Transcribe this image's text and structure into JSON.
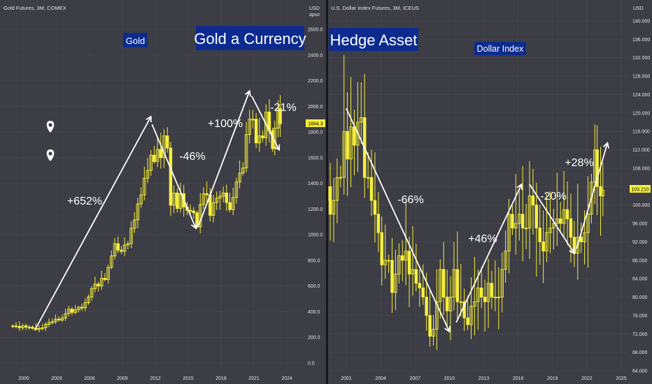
{
  "colors": {
    "background": "#3c3d45",
    "grid": "#4a4b53",
    "candle": "#f7ef3a",
    "arrow": "#ffffff",
    "text": "#e6e6e6",
    "label_box": "#0d2b8f",
    "price_tag": "#f7ef3a",
    "divider": "#17181c"
  },
  "chart_data": [
    {
      "type": "candlestick",
      "title": "Gold Futures, 3M, COMEX",
      "axis_currency": "USD",
      "axis_unit": "apoz",
      "yticks": [
        "0.0",
        "200.0",
        "400.0",
        "600.0",
        "800.0",
        "1000.0",
        "1200.0",
        "1400.0",
        "1600.0",
        "1800.0",
        "2000.0",
        "2200.0",
        "2400.0",
        "2600.0"
      ],
      "ylim": [
        -50,
        2700
      ],
      "xticks": [
        "2000",
        "2003",
        "2006",
        "2009",
        "2012",
        "2015",
        "2018",
        "2021",
        "2024"
      ],
      "last_price": "1864.3",
      "labels": {
        "series": "Gold",
        "theme": "Gold a Currency"
      },
      "moves": [
        "+652%",
        "-46%",
        "+100%",
        "-21%"
      ],
      "trend_arrows": [
        {
          "from": [
            2001.0,
            255
          ],
          "to": [
            2011.6,
            1920
          ]
        },
        {
          "from": [
            2011.7,
            1860
          ],
          "to": [
            2015.7,
            1050
          ]
        },
        {
          "from": [
            2015.9,
            1060
          ],
          "to": [
            2020.6,
            2120
          ]
        },
        {
          "from": [
            2020.8,
            2080
          ],
          "to": [
            2023.3,
            1660
          ]
        }
      ],
      "quarterly_close": [
        [
          1999.0,
          290
        ],
        [
          1999.3,
          285
        ],
        [
          1999.6,
          275
        ],
        [
          1999.9,
          290
        ],
        [
          2000.2,
          280
        ],
        [
          2000.5,
          280
        ],
        [
          2000.8,
          270
        ],
        [
          2001.1,
          262
        ],
        [
          2001.4,
          270
        ],
        [
          2001.7,
          275
        ],
        [
          2002.0,
          302
        ],
        [
          2002.3,
          315
        ],
        [
          2002.6,
          322
        ],
        [
          2002.9,
          342
        ],
        [
          2003.2,
          335
        ],
        [
          2003.5,
          350
        ],
        [
          2003.8,
          385
        ],
        [
          2004.1,
          420
        ],
        [
          2004.4,
          395
        ],
        [
          2004.7,
          415
        ],
        [
          2005.0,
          435
        ],
        [
          2005.3,
          430
        ],
        [
          2005.6,
          470
        ],
        [
          2005.9,
          515
        ],
        [
          2006.2,
          580
        ],
        [
          2006.5,
          615
        ],
        [
          2006.8,
          600
        ],
        [
          2007.1,
          660
        ],
        [
          2007.4,
          650
        ],
        [
          2007.7,
          745
        ],
        [
          2008.0,
          835
        ],
        [
          2008.3,
          930
        ],
        [
          2008.6,
          880
        ],
        [
          2008.9,
          870
        ],
        [
          2009.2,
          920
        ],
        [
          2009.5,
          930
        ],
        [
          2009.8,
          1050
        ],
        [
          2010.1,
          1115
        ],
        [
          2010.4,
          1240
        ],
        [
          2010.7,
          1310
        ],
        [
          2011.0,
          1440
        ],
        [
          2011.3,
          1500
        ],
        [
          2011.6,
          1620
        ],
        [
          2011.9,
          1570
        ],
        [
          2012.2,
          1665
        ],
        [
          2012.5,
          1600
        ],
        [
          2012.8,
          1770
        ],
        [
          2013.1,
          1675
        ],
        [
          2013.4,
          1230
        ],
        [
          2013.7,
          1325
        ],
        [
          2014.0,
          1205
        ],
        [
          2014.3,
          1320
        ],
        [
          2014.6,
          1215
        ],
        [
          2014.9,
          1190
        ],
        [
          2015.2,
          1185
        ],
        [
          2015.5,
          1170
        ],
        [
          2015.8,
          1060
        ],
        [
          2016.1,
          1235
        ],
        [
          2016.4,
          1320
        ],
        [
          2016.7,
          1310
        ],
        [
          2017.0,
          1150
        ],
        [
          2017.3,
          1250
        ],
        [
          2017.6,
          1285
        ],
        [
          2017.9,
          1300
        ],
        [
          2018.2,
          1325
        ],
        [
          2018.5,
          1250
        ],
        [
          2018.8,
          1195
        ],
        [
          2019.1,
          1290
        ],
        [
          2019.4,
          1410
        ],
        [
          2019.7,
          1480
        ],
        [
          2020.0,
          1520
        ],
        [
          2020.3,
          1780
        ],
        [
          2020.6,
          1900
        ],
        [
          2020.9,
          1900
        ],
        [
          2021.2,
          1715
        ],
        [
          2021.5,
          1770
        ],
        [
          2021.8,
          1755
        ],
        [
          2022.1,
          1955
        ],
        [
          2022.4,
          1810
        ],
        [
          2022.7,
          1670
        ],
        [
          2022.9,
          1830
        ],
        [
          2023.2,
          1985
        ],
        [
          2023.4,
          1864
        ]
      ]
    },
    {
      "type": "candlestick",
      "title": "U.S. Dollar Index Futures, 3M, ICEUS",
      "axis_currency": "USD",
      "yticks": [
        "64.000",
        "68.000",
        "72.000",
        "76.000",
        "80.000",
        "84.000",
        "88.000",
        "92.000",
        "96.000",
        "100.000",
        "104.000",
        "108.000",
        "112.000",
        "116.000",
        "120.000",
        "124.000",
        "128.000",
        "132.000",
        "136.000",
        "140.000"
      ],
      "ylim": [
        63.5,
        144
      ],
      "xticks": [
        "2001",
        "2004",
        "2007",
        "2010",
        "2013",
        "2016",
        "2019",
        "2022",
        "2025"
      ],
      "last_price": "103.210",
      "labels": {
        "series": "Dollar Index",
        "theme": "Hedge Asset"
      },
      "moves": [
        "-66%",
        "+46%",
        "-20%",
        "+28%"
      ],
      "trend_arrows": [
        {
          "from": [
            2001.0,
            121
          ],
          "to": [
            2010.0,
            72.5
          ]
        },
        {
          "from": [
            2010.6,
            74.5
          ],
          "to": [
            2016.3,
            104.5
          ]
        },
        {
          "from": [
            2017.0,
            104.5
          ],
          "to": [
            2020.9,
            89.5
          ]
        },
        {
          "from": [
            2021.1,
            90.5
          ],
          "to": [
            2023.8,
            113.5
          ]
        }
      ],
      "quarterly_close": [
        [
          1998.7,
          97
        ],
        [
          1999.0,
          101
        ],
        [
          1999.3,
          104
        ],
        [
          1999.6,
          98
        ],
        [
          1999.9,
          101
        ],
        [
          2000.2,
          106
        ],
        [
          2000.5,
          106
        ],
        [
          2000.8,
          116
        ],
        [
          2001.1,
          110
        ],
        [
          2001.4,
          117
        ],
        [
          2001.7,
          113
        ],
        [
          2002.0,
          118
        ],
        [
          2002.3,
          119
        ],
        [
          2002.6,
          106
        ],
        [
          2002.9,
          106
        ],
        [
          2003.2,
          101
        ],
        [
          2003.5,
          98
        ],
        [
          2003.8,
          94
        ],
        [
          2004.1,
          87
        ],
        [
          2004.4,
          88
        ],
        [
          2004.7,
          88
        ],
        [
          2005.0,
          81
        ],
        [
          2005.3,
          85
        ],
        [
          2005.6,
          89
        ],
        [
          2005.9,
          88
        ],
        [
          2006.2,
          90
        ],
        [
          2006.5,
          85
        ],
        [
          2006.8,
          86
        ],
        [
          2007.1,
          83
        ],
        [
          2007.4,
          82
        ],
        [
          2007.7,
          80
        ],
        [
          2008.0,
          76
        ],
        [
          2008.3,
          71.5
        ],
        [
          2008.6,
          73
        ],
        [
          2008.9,
          79
        ],
        [
          2009.2,
          86
        ],
        [
          2009.5,
          80
        ],
        [
          2009.8,
          77
        ],
        [
          2010.1,
          80
        ],
        [
          2010.4,
          86
        ],
        [
          2010.7,
          79
        ],
        [
          2011.0,
          79
        ],
        [
          2011.3,
          75.5
        ],
        [
          2011.6,
          74
        ],
        [
          2011.9,
          78
        ],
        [
          2012.2,
          79
        ],
        [
          2012.5,
          82
        ],
        [
          2012.8,
          80
        ],
        [
          2013.1,
          79
        ],
        [
          2013.4,
          83
        ],
        [
          2013.7,
          80
        ],
        [
          2014.0,
          80
        ],
        [
          2014.3,
          80
        ],
        [
          2014.6,
          86
        ],
        [
          2014.9,
          90
        ],
        [
          2015.2,
          98
        ],
        [
          2015.5,
          95
        ],
        [
          2015.8,
          96
        ],
        [
          2016.1,
          98
        ],
        [
          2016.4,
          95
        ],
        [
          2016.7,
          95
        ],
        [
          2017.0,
          102
        ],
        [
          2017.3,
          100
        ],
        [
          2017.6,
          95
        ],
        [
          2017.9,
          92
        ],
        [
          2018.2,
          90
        ],
        [
          2018.5,
          94
        ],
        [
          2018.8,
          95
        ],
        [
          2019.1,
          96
        ],
        [
          2019.4,
          97
        ],
        [
          2019.7,
          96
        ],
        [
          2020.0,
          99
        ],
        [
          2020.3,
          97
        ],
        [
          2020.6,
          93
        ],
        [
          2020.9,
          89.5
        ],
        [
          2021.2,
          93
        ],
        [
          2021.5,
          92
        ],
        [
          2021.8,
          94
        ],
        [
          2022.1,
          98
        ],
        [
          2022.4,
          105
        ],
        [
          2022.7,
          112
        ],
        [
          2022.9,
          104
        ],
        [
          2023.2,
          102
        ],
        [
          2023.4,
          103.2
        ]
      ]
    }
  ]
}
